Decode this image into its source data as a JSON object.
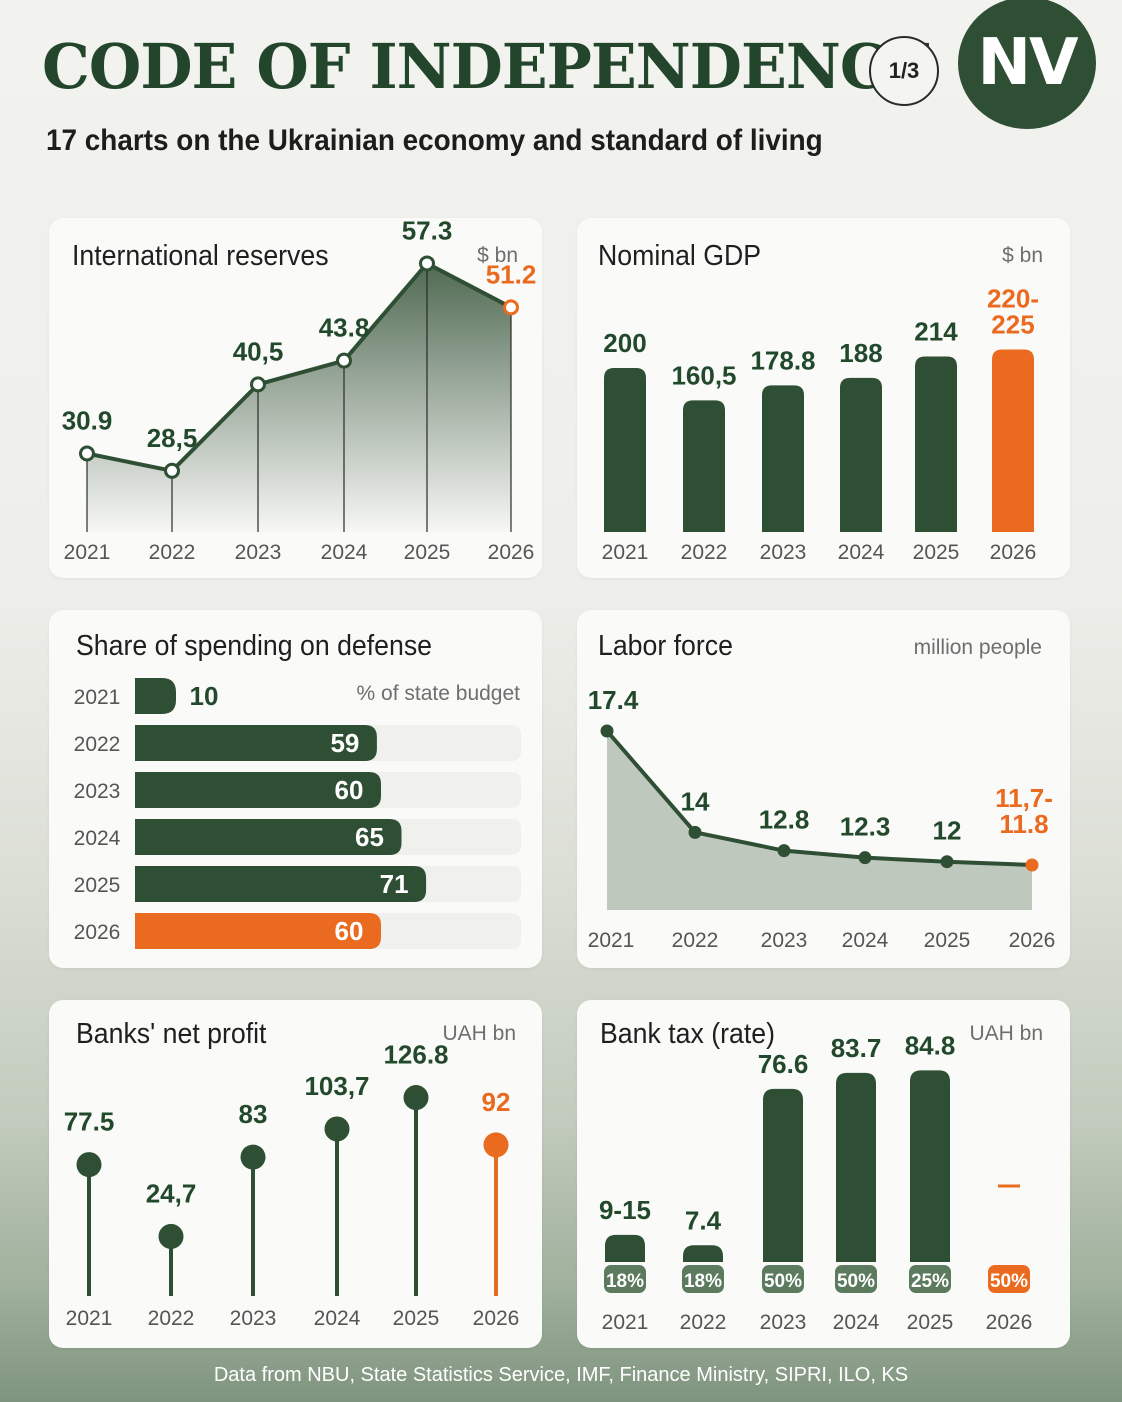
{
  "header": {
    "title": "CODE OF INDEPENDENCE",
    "subtitle": "17 charts on the Ukrainian economy and standard of living",
    "page_badge": "1/3",
    "logo_text": "NV"
  },
  "footer": {
    "source": "Data from NBU, State Statistics Service, IMF, Finance Ministry, SIPRI, ILO, KS"
  },
  "colors": {
    "green": "#2f4f34",
    "orange": "#ea6a1f",
    "text_green": "#23492d"
  },
  "chart_data": [
    {
      "type": "area",
      "title": "International reserves",
      "unit": "$ bn",
      "categories": [
        "2021",
        "2022",
        "2023",
        "2024",
        "2025",
        "2026"
      ],
      "values": [
        30.9,
        28.5,
        40.5,
        43.8,
        57.3,
        51.2
      ],
      "labels": [
        "30.9",
        "28,5",
        "40,5",
        "43.8",
        "57.3",
        "51.2"
      ],
      "highlight_index": 5
    },
    {
      "type": "bar",
      "title": "Nominal GDP",
      "unit": "$ bn",
      "categories": [
        "2021",
        "2022",
        "2023",
        "2024",
        "2025",
        "2026"
      ],
      "values": [
        200,
        160.5,
        178.8,
        188,
        214,
        222.5
      ],
      "labels": [
        "200",
        "160,5",
        "178.8",
        "188",
        "214",
        "220-\n225"
      ],
      "highlight_index": 5
    },
    {
      "type": "bar",
      "orientation": "horizontal",
      "title": "Share of spending on defense",
      "unit": "% of state budget",
      "categories": [
        "2021",
        "2022",
        "2023",
        "2024",
        "2025",
        "2026"
      ],
      "values": [
        10,
        59,
        60,
        65,
        71,
        60
      ],
      "labels": [
        "10",
        "59",
        "60",
        "65",
        "71",
        "60"
      ],
      "highlight_index": 5
    },
    {
      "type": "area",
      "title": "Labor force",
      "unit": "million people",
      "categories": [
        "2021",
        "2022",
        "2023",
        "2024",
        "2025",
        "2026"
      ],
      "values": [
        17.4,
        14,
        12.8,
        12.3,
        12,
        11.75
      ],
      "labels": [
        "17.4",
        "14",
        "12.8",
        "12.3",
        "12",
        "11,7-\n11.8"
      ],
      "highlight_index": 5
    },
    {
      "type": "scatter",
      "title": "Banks' net profit",
      "unit": "UAH bn",
      "categories": [
        "2021",
        "2022",
        "2023",
        "2024",
        "2025",
        "2026"
      ],
      "values": [
        77.5,
        24.7,
        83,
        103.7,
        126.8,
        92
      ],
      "labels": [
        "77.5",
        "24,7",
        "83",
        "103,7",
        "126.8",
        "92"
      ],
      "highlight_index": 5
    },
    {
      "type": "bar",
      "title": "Bank tax (rate)",
      "unit": "UAH bn",
      "categories": [
        "2021",
        "2022",
        "2023",
        "2024",
        "2025",
        "2026"
      ],
      "values": [
        12,
        7.4,
        76.6,
        83.7,
        84.8,
        null
      ],
      "labels": [
        "9-15",
        "7.4",
        "76.6",
        "83.7",
        "84.8",
        "—"
      ],
      "rates": [
        "18%",
        "18%",
        "50%",
        "50%",
        "25%",
        "50%"
      ],
      "highlight_index": 5
    }
  ]
}
